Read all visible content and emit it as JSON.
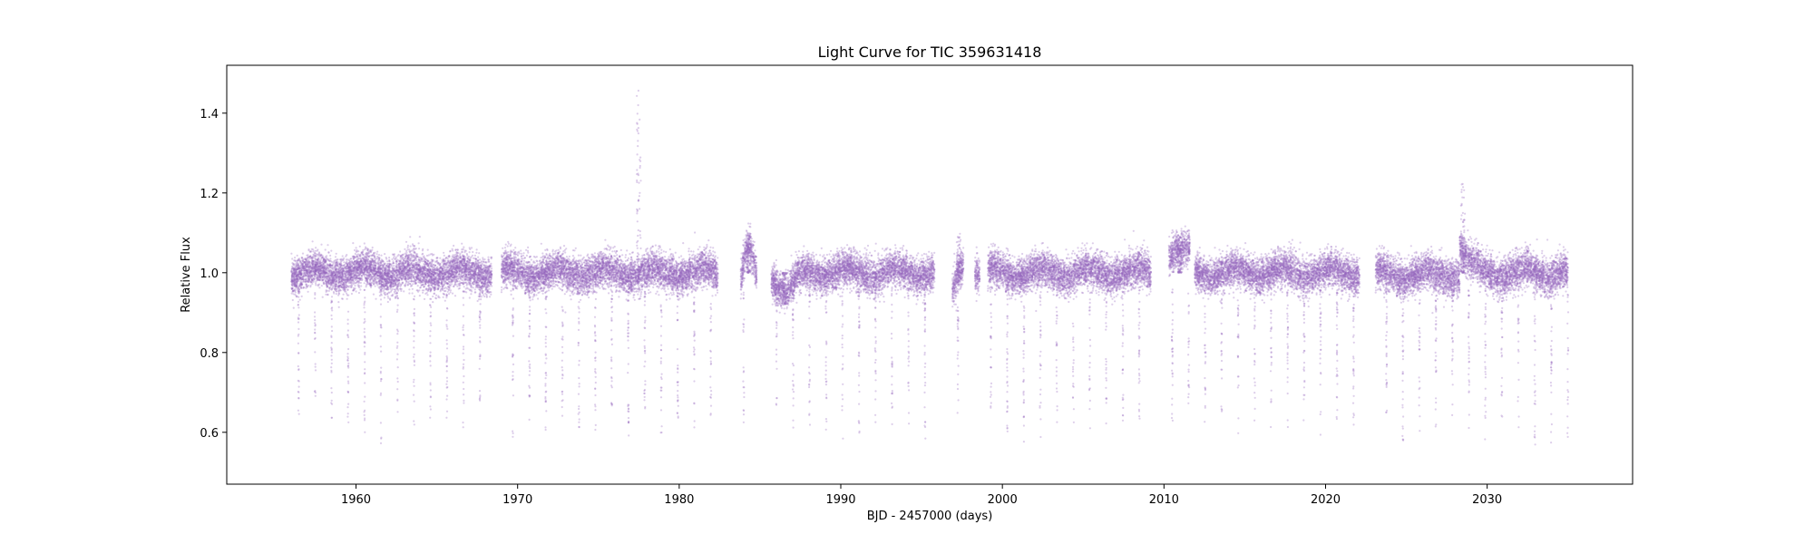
{
  "chart_data": {
    "type": "scatter",
    "title": "Light Curve for TIC 359631418",
    "xlabel": "BJD - 2457000 (days)",
    "ylabel": "Relative Flux",
    "xlim": [
      1952.0,
      2039.0
    ],
    "ylim": [
      0.47,
      1.52
    ],
    "xticks": [
      1960,
      1970,
      1980,
      1990,
      2000,
      2010,
      2020,
      2030
    ],
    "yticks": [
      0.6,
      0.8,
      1.0,
      1.2,
      1.4
    ],
    "grid": false,
    "legend": "none",
    "marker_color": "#9467bd",
    "series": [
      {
        "baseline_flux": 1.0,
        "segments": [
          {
            "start": 1956.0,
            "end": 1968.4
          },
          {
            "start": 1969.0,
            "end": 1982.4
          },
          {
            "start": 1983.8,
            "end": 1984.8
          },
          {
            "start": 1985.7,
            "end": 1995.8
          },
          {
            "start": 1996.9,
            "end": 1997.6
          },
          {
            "start": 1998.3,
            "end": 1998.6
          },
          {
            "start": 1999.1,
            "end": 2009.2
          },
          {
            "start": 2010.3,
            "end": 2011.6
          },
          {
            "start": 2011.9,
            "end": 2022.1
          },
          {
            "start": 2023.1,
            "end": 2035.0
          }
        ],
        "dip_period": 1.02,
        "dip_first": 1956.45,
        "dip_min_flux": 0.56,
        "features": [
          {
            "x": 1977.5,
            "flux": 1.47
          },
          {
            "x": 1984.3,
            "flux": 1.13
          },
          {
            "x": 1986.5,
            "flux": 0.92
          },
          {
            "x": 1997.3,
            "flux": 1.1
          },
          {
            "x": 2011.0,
            "flux": 1.08
          },
          {
            "x": 2028.5,
            "flux": 1.23
          }
        ]
      }
    ]
  }
}
